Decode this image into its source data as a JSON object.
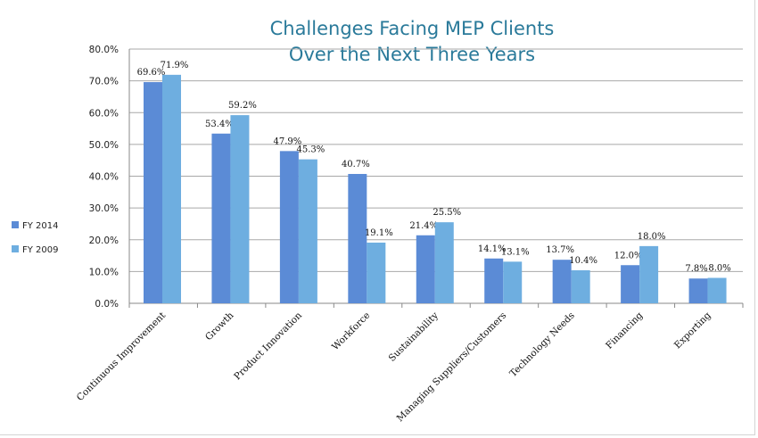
{
  "chart_data": {
    "type": "bar",
    "title_line1": "Challenges Facing MEP Clients",
    "title_line2": "Over the Next Three Years",
    "categories": [
      "Continuous Improvement",
      "Growth",
      "Product Innovation",
      "Workforce",
      "Sustainability",
      "Managing Suppliers/Customers",
      "Technology Needs",
      "Financing",
      "Exporting"
    ],
    "series": [
      {
        "name": "FY 2014",
        "color": "#5b8bd6",
        "values": [
          69.6,
          53.4,
          47.9,
          40.7,
          21.4,
          14.1,
          13.7,
          12.0,
          7.8
        ],
        "labels": [
          "69.6%",
          "53.4%",
          "47.9%",
          "40.7%",
          "21.4%",
          "14.1%",
          "13.7%",
          "12.0%",
          "7.8%"
        ]
      },
      {
        "name": "FY 2009",
        "color": "#6eaee0",
        "values": [
          71.9,
          59.2,
          45.3,
          19.1,
          25.5,
          13.1,
          10.4,
          18.0,
          8.0
        ],
        "labels": [
          "71.9%",
          "59.2%",
          "45.3%",
          "19.1%",
          "25.5%",
          "13.1%",
          "10.4%",
          "18.0%",
          "8.0%"
        ]
      }
    ],
    "ylim": [
      0,
      80
    ],
    "yticks": [
      "0.0%",
      "10.0%",
      "20.0%",
      "30.0%",
      "40.0%",
      "50.0%",
      "60.0%",
      "70.0%",
      "80.0%"
    ],
    "grid": true,
    "legend_position": "left"
  }
}
